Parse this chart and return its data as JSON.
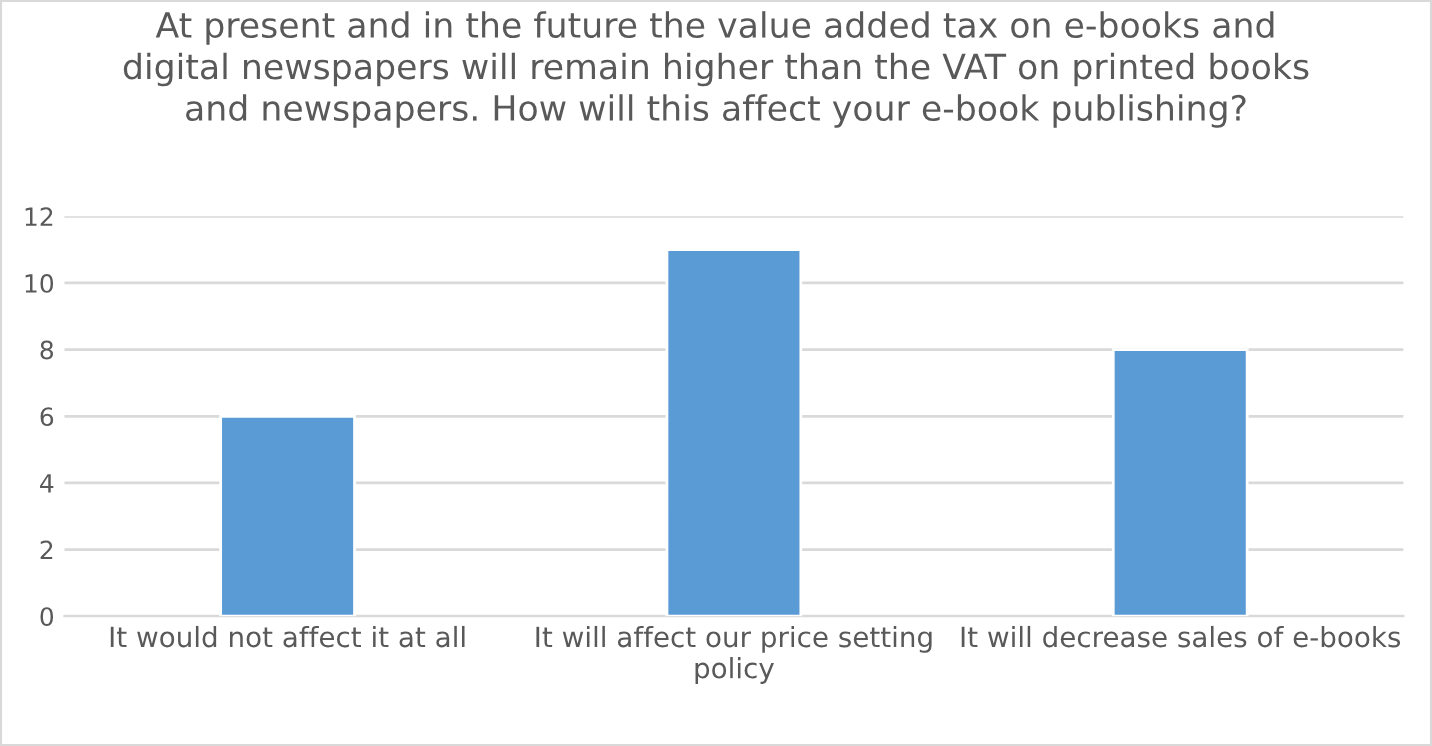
{
  "chart_data": {
    "type": "bar",
    "title": "At present and in the future the value added tax on e-books and\ndigital newspapers will remain higher than the VAT on printed books\nand newspapers. How will this affect your e-book publishing?",
    "categories": [
      "It would not affect it at all",
      "It will affect our price setting\npolicy",
      "It will decrease sales of e-books"
    ],
    "values": [
      6,
      11,
      8
    ],
    "color": "#5b9bd5",
    "ylim": [
      0,
      12
    ],
    "yticks": [
      0,
      2,
      4,
      6,
      8,
      10,
      12
    ],
    "grid": "y",
    "legend": false
  }
}
